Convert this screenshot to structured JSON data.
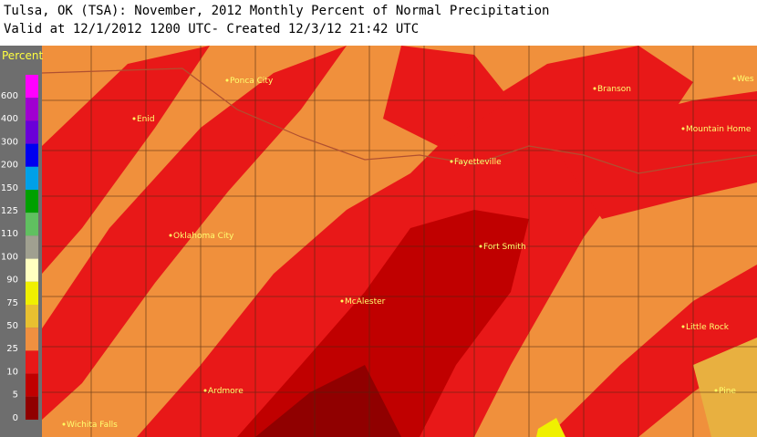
{
  "header": {
    "line1": "Tulsa, OK (TSA): November, 2012 Monthly Percent of Normal Precipitation",
    "line2": "Valid at 12/1/2012 1200 UTC- Created 12/3/12 21:42 UTC"
  },
  "legend": {
    "title": "Percent",
    "items": [
      {
        "label": 600,
        "color": "#ff00ff"
      },
      {
        "label": 400,
        "color": "#a000d0"
      },
      {
        "label": 300,
        "color": "#6a00d8"
      },
      {
        "label": 200,
        "color": "#0000f0"
      },
      {
        "label": 150,
        "color": "#00a0e8"
      },
      {
        "label": 125,
        "color": "#00a000"
      },
      {
        "label": 110,
        "color": "#60c060"
      },
      {
        "label": 100,
        "color": "#a0a090"
      },
      {
        "label": 90,
        "color": "#ffffc0"
      },
      {
        "label": 75,
        "color": "#f0f000"
      },
      {
        "label": 50,
        "color": "#e8c030"
      },
      {
        "label": 25,
        "color": "#f09040"
      },
      {
        "label": 10,
        "color": "#e81818"
      },
      {
        "label": 5,
        "color": "#c00000"
      },
      {
        "label": 0,
        "color": "#900000"
      }
    ]
  },
  "cities": [
    {
      "name": "Ponca City"
    },
    {
      "name": "Enid"
    },
    {
      "name": "Branson"
    },
    {
      "name": "Wes"
    },
    {
      "name": "Mountain Home"
    },
    {
      "name": "Fayetteville"
    },
    {
      "name": "Oklahoma City"
    },
    {
      "name": "Fort Smith"
    },
    {
      "name": "McAlester"
    },
    {
      "name": "Little Rock"
    },
    {
      "name": "Ardmore"
    },
    {
      "name": "Wichita Falls"
    },
    {
      "name": "Pine"
    }
  ]
}
